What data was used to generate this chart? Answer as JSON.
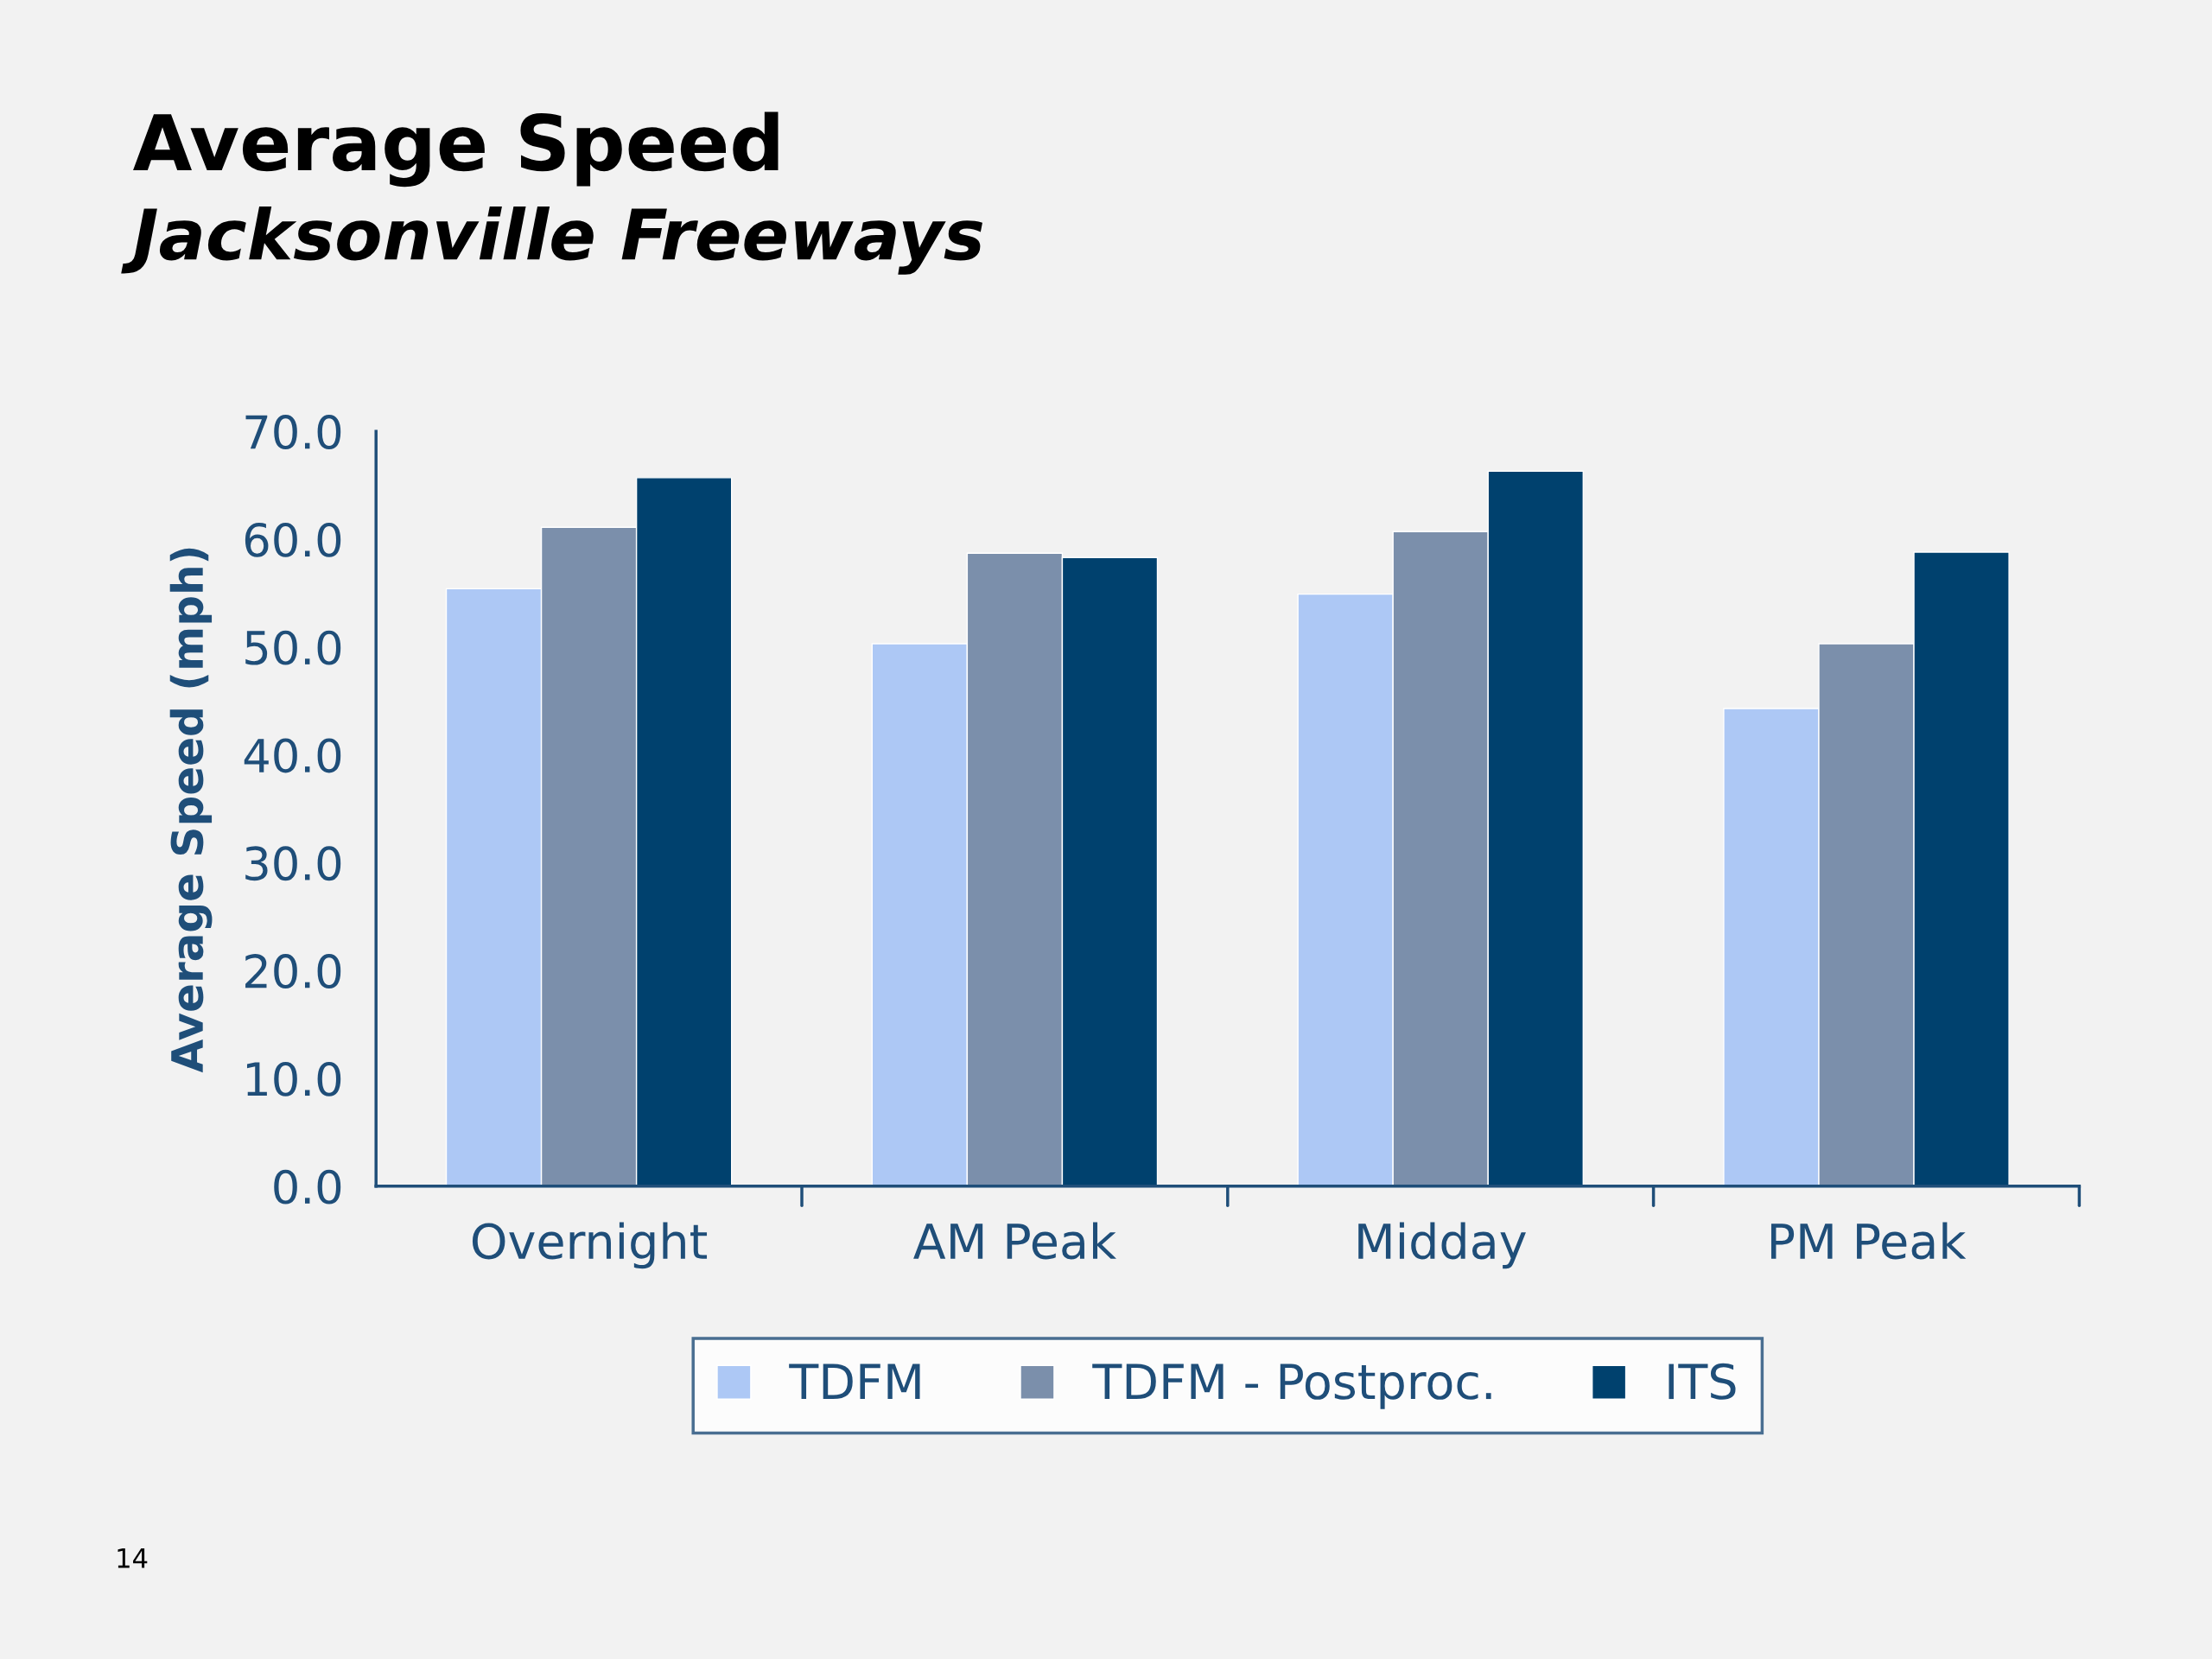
{
  "chart_data": {
    "type": "bar",
    "title": "Average Speed",
    "subtitle": "Jacksonville Freeways",
    "ylabel": "Average Speed (mph)",
    "categories": [
      "Overnight",
      "AM Peak",
      "Midday",
      "PM Peak"
    ],
    "series": [
      {
        "name": "TDFM",
        "color": "#adc8f5",
        "values": [
          55.4,
          50.3,
          54.9,
          44.3
        ]
      },
      {
        "name": "TDFM - Postproc.",
        "color": "#7b8fab",
        "values": [
          61.1,
          58.7,
          60.7,
          50.3
        ]
      },
      {
        "name": "ITS",
        "color": "#00416e",
        "values": [
          65.7,
          58.3,
          66.3,
          58.8
        ]
      }
    ],
    "ylim": [
      0,
      70
    ],
    "yticks": [
      {
        "value": 0,
        "label": "0.0"
      },
      {
        "value": 10,
        "label": "10.0"
      },
      {
        "value": 20,
        "label": "20.0"
      },
      {
        "value": 30,
        "label": "30.0"
      },
      {
        "value": 40,
        "label": "40.0"
      },
      {
        "value": 50,
        "label": "50.0"
      },
      {
        "value": 60,
        "label": "60.0"
      },
      {
        "value": 70,
        "label": "70.0"
      }
    ],
    "grid": false,
    "legend": "bottom",
    "annotations": [
      "14"
    ]
  }
}
